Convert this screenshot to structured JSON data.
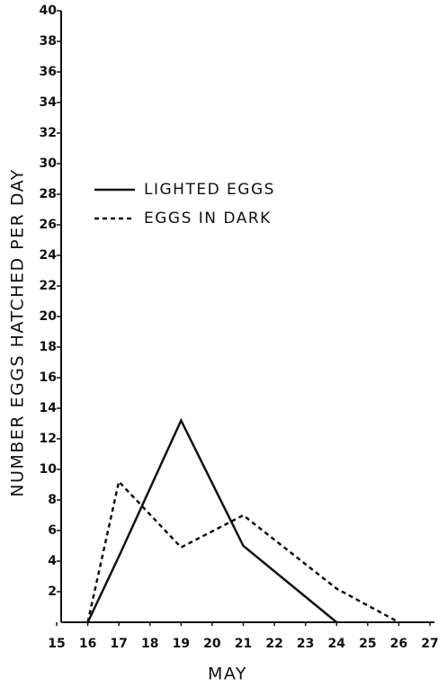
{
  "chart_data": {
    "type": "line",
    "xlabel": "MAY",
    "ylabel": "NUMBER EGGS HATCHED PER DAY",
    "xlim": [
      15,
      27
    ],
    "xticks": [
      15,
      16,
      17,
      18,
      19,
      20,
      21,
      22,
      23,
      24,
      25,
      26,
      27
    ],
    "ylim": [
      0,
      40
    ],
    "yticks": [
      2,
      4,
      6,
      8,
      10,
      12,
      14,
      16,
      18,
      20,
      22,
      24,
      26,
      28,
      30,
      32,
      34,
      36,
      38,
      40
    ],
    "series": [
      {
        "name": "LIGHTED EGGS",
        "color": "#111111",
        "style": "solid",
        "x": [
          16,
          17,
          19,
          21,
          24
        ],
        "values": [
          0,
          4.3,
          13.2,
          5,
          0
        ]
      },
      {
        "name": "EGGS IN DARK",
        "color": "#111111",
        "style": "dashed",
        "x": [
          16,
          17,
          19,
          21,
          24,
          26
        ],
        "values": [
          0,
          9.2,
          4.9,
          7,
          2.2,
          0
        ]
      }
    ]
  }
}
